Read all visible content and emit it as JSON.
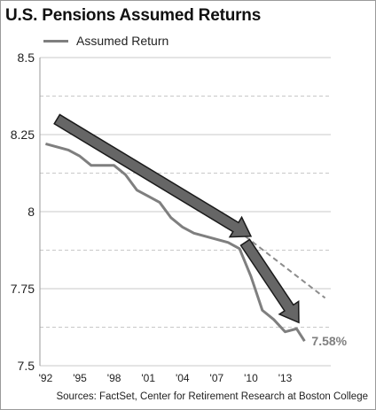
{
  "chart_data": {
    "type": "line",
    "title": "U.S. Pensions Assumed Returns",
    "xlabel": "",
    "ylabel": "",
    "ylim": [
      7.5,
      8.5
    ],
    "xlim": [
      1991.5,
      2017
    ],
    "yticks": [
      7.5,
      7.75,
      8,
      8.25,
      8.5
    ],
    "ytick_labels": [
      "7.5",
      "7.75",
      "8",
      "8.25",
      "8.5"
    ],
    "xticks": [
      1992,
      1995,
      1998,
      2001,
      2004,
      2007,
      2010,
      2013
    ],
    "xtick_labels": [
      "'92",
      "'95",
      "'98",
      "'01",
      "'04",
      "'07",
      "'10",
      "'13"
    ],
    "grid": "horizontal, dashed and solid alternating",
    "legend_placement": "top-left",
    "series": [
      {
        "name": "Assumed Return",
        "color": "#7f7f7f",
        "x": [
          1992,
          1993,
          1994,
          1995,
          1996,
          1997,
          1998,
          1999,
          2000,
          2001,
          2002,
          2003,
          2004,
          2005,
          2006,
          2007,
          2008,
          2009,
          2010,
          2011,
          2012,
          2013,
          2014
        ],
        "values": [
          8.22,
          8.21,
          8.2,
          8.18,
          8.15,
          8.15,
          8.15,
          8.12,
          8.07,
          8.05,
          8.03,
          7.98,
          7.95,
          7.93,
          7.92,
          7.91,
          7.9,
          7.88,
          7.79,
          7.68,
          7.65,
          7.61,
          7.62
        ]
      }
    ],
    "final_point": {
      "x": 2014.7,
      "value": 7.58,
      "label": "7.58%"
    },
    "trend_extension": {
      "style": "dashed",
      "color": "#8c8c8c",
      "x": [
        2009.5,
        2016.5
      ],
      "values": [
        7.92,
        7.72
      ]
    },
    "arrows": [
      {
        "from": [
          1993,
          8.3
        ],
        "to": [
          2010,
          7.92
        ],
        "color": "#666666"
      },
      {
        "from": [
          2009.5,
          7.9
        ],
        "to": [
          2014.2,
          7.64
        ],
        "color": "#666666"
      }
    ]
  },
  "source": "Sources: FactSet, Center for Retirement Research at Boston College"
}
